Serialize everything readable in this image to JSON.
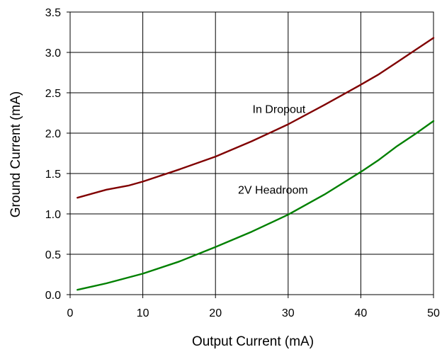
{
  "chart_data": {
    "type": "line",
    "xlabel": "Output Current (mA)",
    "ylabel": "Ground Current (mA)",
    "xlim": [
      0,
      50
    ],
    "ylim": [
      0,
      3.5
    ],
    "x_ticks": [
      "0",
      "10",
      "20",
      "30",
      "40",
      "50"
    ],
    "y_ticks": [
      "0.0",
      "0.5",
      "1.0",
      "1.5",
      "2.0",
      "2.5",
      "3.0",
      "3.5"
    ],
    "grid": true,
    "series": [
      {
        "name": "In Dropout",
        "color": "#800000",
        "x": [
          1,
          5,
          8,
          10,
          15,
          20,
          25,
          30,
          35,
          40,
          42.5,
          45,
          47.5,
          50
        ],
        "y": [
          1.2,
          1.3,
          1.35,
          1.4,
          1.55,
          1.71,
          1.9,
          2.11,
          2.35,
          2.6,
          2.73,
          2.88,
          3.03,
          3.18
        ]
      },
      {
        "name": "2V Headroom",
        "color": "#008000",
        "x": [
          1,
          5,
          10,
          15,
          20,
          25,
          30,
          35,
          40,
          42.5,
          45,
          47.5,
          50
        ],
        "y": [
          0.06,
          0.14,
          0.26,
          0.41,
          0.59,
          0.78,
          0.99,
          1.24,
          1.52,
          1.67,
          1.84,
          1.99,
          2.15
        ]
      }
    ],
    "annotations": [
      {
        "text": "In Dropout",
        "x": 25.1,
        "y": 2.25
      },
      {
        "text": "2V Headroom",
        "x": 23.1,
        "y": 1.25
      }
    ]
  }
}
